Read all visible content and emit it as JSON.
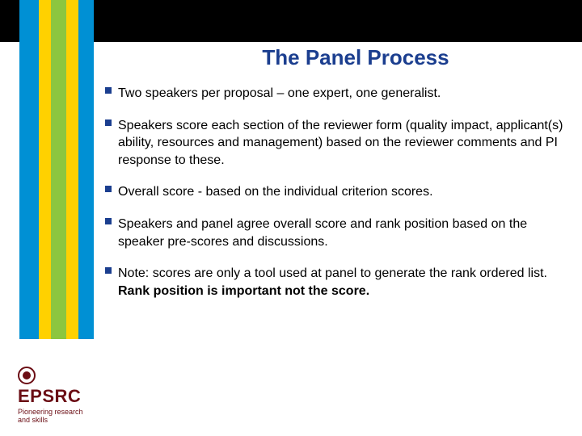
{
  "colors": {
    "title": "#1b3e8f",
    "bullet": "#1b3e8f",
    "logo": "#6b0d14",
    "top_strip": "#000000",
    "background": "#ffffff"
  },
  "stripes": [
    {
      "color": "#0090d4"
    },
    {
      "color": "#ffd100"
    },
    {
      "color": "#8cc63f"
    },
    {
      "color": "#ffd100"
    },
    {
      "color": "#0090d4"
    }
  ],
  "slide": {
    "title": "The Panel Process",
    "bullets": [
      {
        "text": "Two speakers per proposal – one expert, one generalist."
      },
      {
        "text": "Speakers score each section of the reviewer form (quality impact, applicant(s) ability, resources and management) based on the reviewer comments and PI response to these."
      },
      {
        "text": "Overall score - based on the individual criterion scores."
      },
      {
        "text": "Speakers and panel agree overall score and rank position based on the speaker pre-scores and discussions."
      },
      {
        "text_pre": "Note: scores are only a tool used at panel to generate the rank ordered list.  ",
        "text_strong": "Rank position is important not the score."
      }
    ]
  },
  "logo": {
    "name": "EPSRC",
    "tagline1": "Pioneering research",
    "tagline2": "and skills"
  },
  "typography": {
    "title_fontsize": 26,
    "body_fontsize": 16,
    "logo_fontsize": 22,
    "tagline_fontsize": 9
  }
}
